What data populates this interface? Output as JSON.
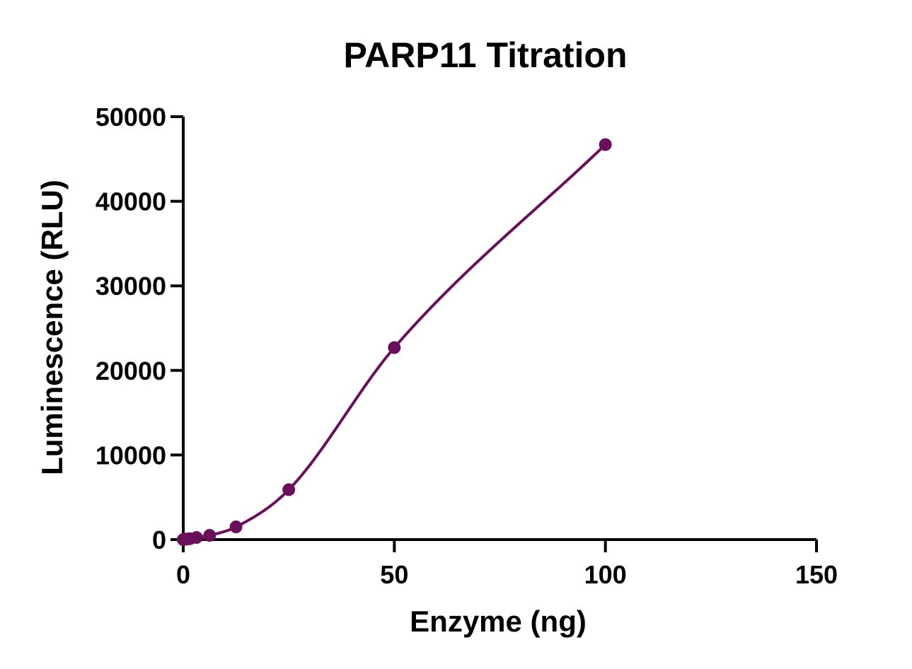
{
  "chart_data": {
    "type": "scatter",
    "title": "PARP11 Titration",
    "xlabel": "Enzyme (ng)",
    "ylabel": "Luminescence (RLU)",
    "xlim": [
      0,
      150
    ],
    "ylim": [
      0,
      50000
    ],
    "xticks": [
      0,
      50,
      100,
      150
    ],
    "yticks": [
      0,
      10000,
      20000,
      30000,
      40000,
      50000
    ],
    "grid": false,
    "legend": "none",
    "series": [
      {
        "color": "#6a0f5c",
        "x": [
          0,
          0.78,
          1.56,
          3.13,
          6.25,
          12.5,
          25,
          50,
          100
        ],
        "y": [
          0,
          60,
          100,
          250,
          500,
          1500,
          5900,
          22700,
          46700
        ],
        "fit_curve": true
      }
    ]
  }
}
